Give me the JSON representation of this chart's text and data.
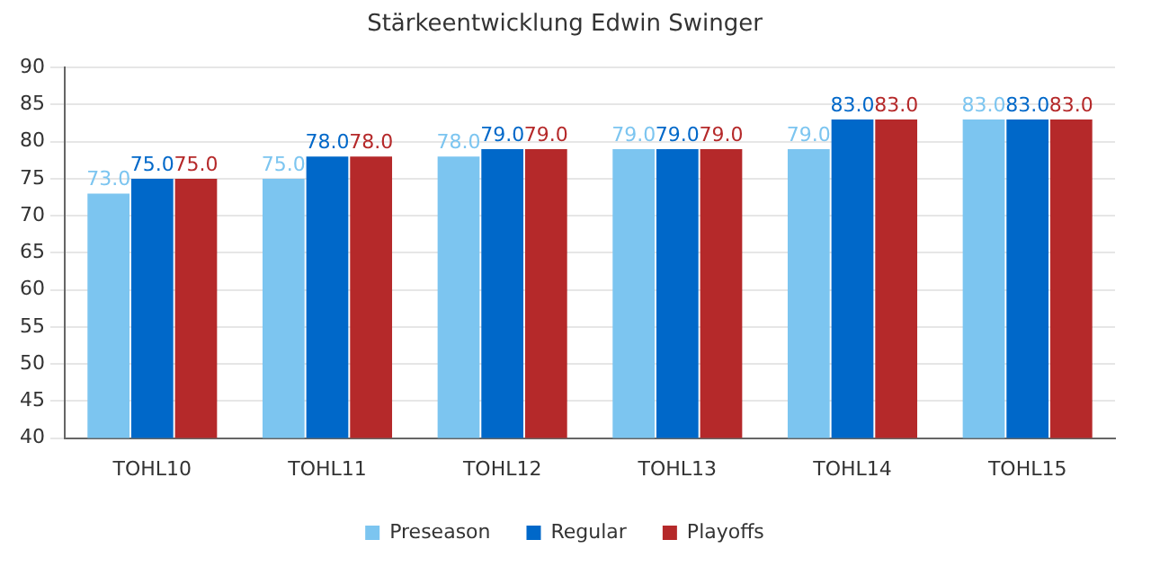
{
  "chart_data": {
    "type": "bar",
    "title": "Stärkeentwicklung Edwin Swinger",
    "categories": [
      "TOHL10",
      "TOHL11",
      "TOHL12",
      "TOHL13",
      "TOHL14",
      "TOHL15"
    ],
    "series": [
      {
        "name": "Preseason",
        "color": "#7cc5f0",
        "values": [
          73,
          75,
          78,
          79,
          79,
          83
        ],
        "value_labels": [
          "73.0",
          "75.0",
          "78.0",
          "79.0",
          "79.0",
          "83.0"
        ]
      },
      {
        "name": "Regular",
        "color": "#0068c9",
        "values": [
          75,
          78,
          79,
          79,
          83,
          83
        ],
        "value_labels": [
          "75.0",
          "78.0",
          "79.0",
          "79.0",
          "83.0",
          "83.0"
        ]
      },
      {
        "name": "Playoffs",
        "color": "#b5292a",
        "values": [
          75,
          78,
          79,
          79,
          83,
          83
        ],
        "value_labels": [
          "75.0",
          "78.0",
          "79.0",
          "79.0",
          "83.0",
          "83.0"
        ]
      }
    ],
    "ylim": [
      40,
      90
    ],
    "yticks": [
      40,
      45,
      50,
      55,
      60,
      65,
      70,
      75,
      80,
      85,
      90
    ],
    "grid": "y",
    "legend": "bottom"
  }
}
